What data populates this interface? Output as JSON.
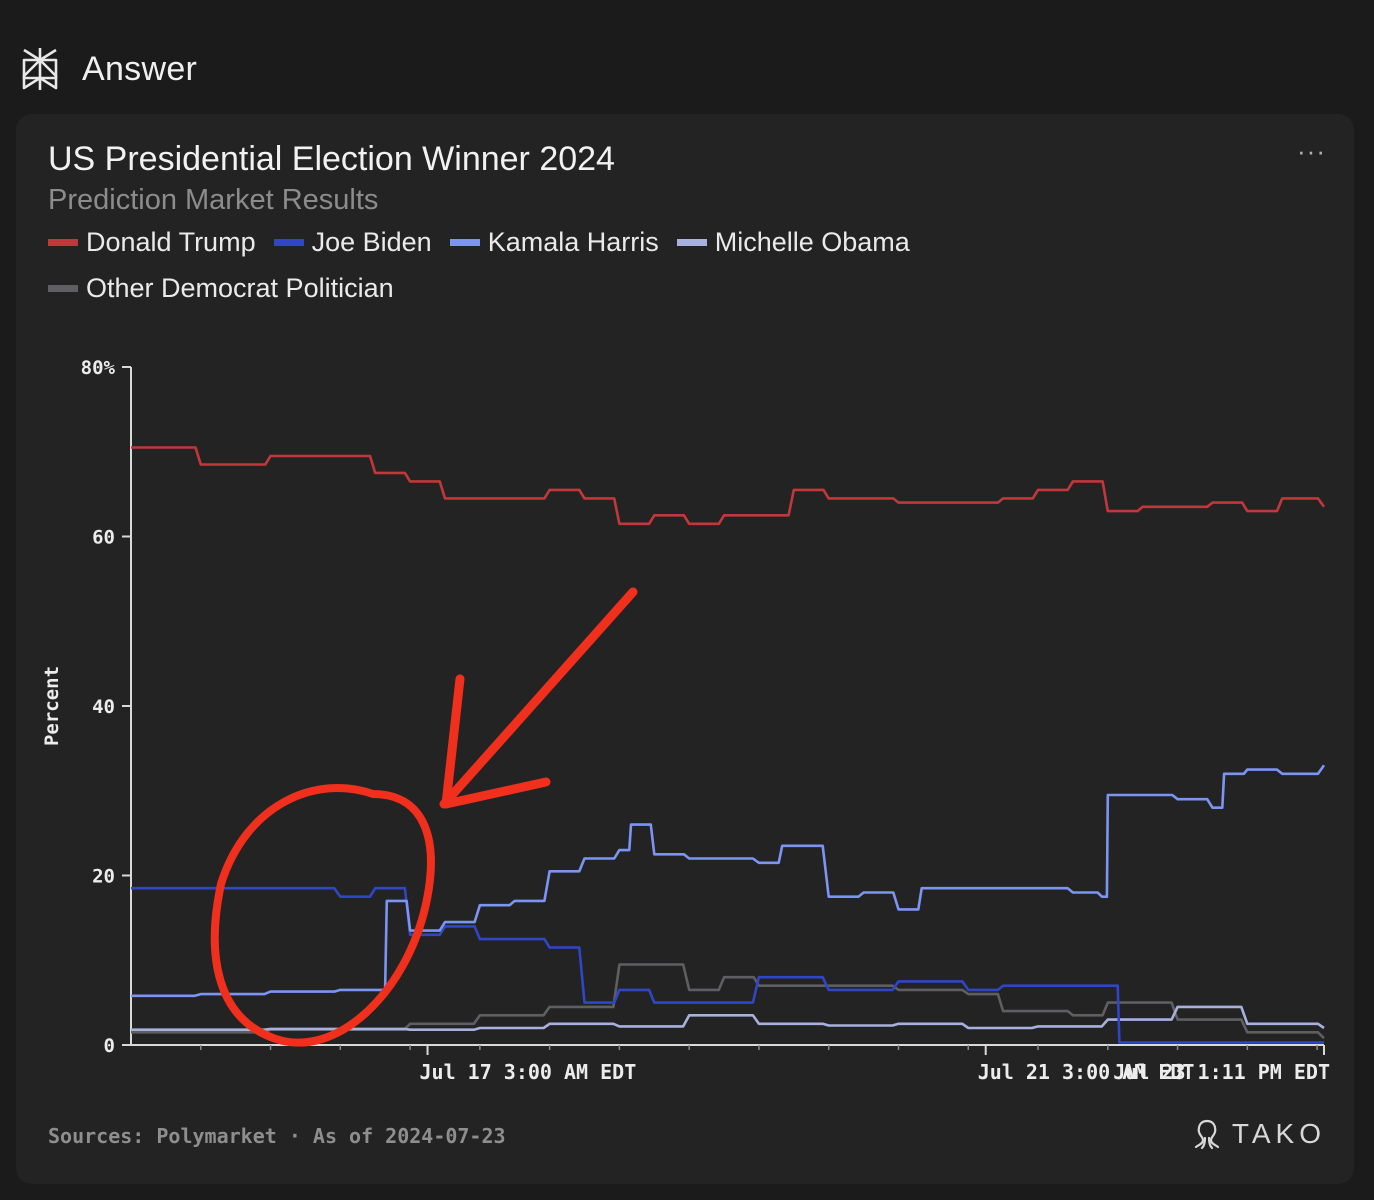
{
  "header": {
    "title": "Answer",
    "icon": "perplexity-logo-icon"
  },
  "card": {
    "menu_label": "···"
  },
  "chart_data": {
    "type": "line",
    "title": "US Presidential Election Winner 2024",
    "subtitle": "Prediction Market Results",
    "ylabel": "Percent",
    "ylim": [
      0,
      80
    ],
    "yticks": [
      {
        "value": 80,
        "label": "80%"
      },
      {
        "value": 60,
        "label": "60"
      },
      {
        "value": 40,
        "label": "40"
      },
      {
        "value": 20,
        "label": "20"
      },
      {
        "value": 0,
        "label": "0"
      }
    ],
    "xlim": [
      "2024-07-15 00:00",
      "2024-07-23 13:11"
    ],
    "xticks": [
      {
        "x": "2024-07-17 03:00",
        "label": "Jul 17 3:00 AM EDT"
      },
      {
        "x": "2024-07-21 03:00",
        "label": "Jul 21 3:00 AM EDT"
      },
      {
        "x": "2024-07-23 13:11",
        "label": "Jul 23 1:11 PM EDT"
      }
    ],
    "legend_position": "top-left",
    "grid": false,
    "series": [
      {
        "name": "Donald Trump",
        "color": "#c2383a",
        "x": [
          "2024-07-15 00:00",
          "2024-07-15 06:00",
          "2024-07-15 12:00",
          "2024-07-15 18:00",
          "2024-07-16 00:00",
          "2024-07-16 06:00",
          "2024-07-16 12:00",
          "2024-07-16 18:00",
          "2024-07-17 00:00",
          "2024-07-17 06:00",
          "2024-07-17 12:00",
          "2024-07-17 18:00",
          "2024-07-18 00:00",
          "2024-07-18 06:00",
          "2024-07-18 12:00",
          "2024-07-18 18:00",
          "2024-07-19 00:00",
          "2024-07-19 06:00",
          "2024-07-19 12:00",
          "2024-07-19 18:00",
          "2024-07-20 00:00",
          "2024-07-20 06:00",
          "2024-07-20 12:00",
          "2024-07-20 18:00",
          "2024-07-21 00:00",
          "2024-07-21 06:00",
          "2024-07-21 12:00",
          "2024-07-21 18:00",
          "2024-07-22 00:00",
          "2024-07-22 06:00",
          "2024-07-22 12:00",
          "2024-07-22 18:00",
          "2024-07-23 00:00",
          "2024-07-23 06:00",
          "2024-07-23 13:11"
        ],
        "y": [
          70.5,
          70.5,
          68.5,
          68.5,
          69.5,
          69.5,
          69.5,
          67.5,
          66.5,
          64.5,
          64.5,
          64.5,
          65.5,
          64.5,
          61.5,
          62.5,
          61.5,
          62.5,
          62.5,
          65.5,
          64.5,
          64.5,
          64.0,
          64.0,
          64.0,
          64.5,
          65.5,
          66.5,
          63.0,
          63.5,
          63.5,
          64.0,
          63.0,
          64.5,
          63.5
        ]
      },
      {
        "name": "Joe Biden",
        "color": "#2e46c7",
        "x": [
          "2024-07-15 00:00",
          "2024-07-15 12:00",
          "2024-07-16 00:00",
          "2024-07-16 12:00",
          "2024-07-16 18:00",
          "2024-07-17 00:00",
          "2024-07-17 06:00",
          "2024-07-17 12:00",
          "2024-07-17 18:00",
          "2024-07-18 00:00",
          "2024-07-18 06:00",
          "2024-07-18 12:00",
          "2024-07-18 18:00",
          "2024-07-19 00:00",
          "2024-07-19 12:00",
          "2024-07-20 00:00",
          "2024-07-20 12:00",
          "2024-07-21 00:00",
          "2024-07-21 06:00",
          "2024-07-21 12:00",
          "2024-07-21 18:00",
          "2024-07-22 00:00",
          "2024-07-22 02:00",
          "2024-07-22 12:00",
          "2024-07-23 00:00",
          "2024-07-23 13:11"
        ],
        "y": [
          18.5,
          18.5,
          18.5,
          17.5,
          18.5,
          13.0,
          14.0,
          12.5,
          12.5,
          11.5,
          5.0,
          6.5,
          5.0,
          5.0,
          8.0,
          6.5,
          7.5,
          6.5,
          7.0,
          7.0,
          7.0,
          7.0,
          0.3,
          0.3,
          0.3,
          0.3
        ]
      },
      {
        "name": "Kamala Harris",
        "color": "#7c95f4",
        "x": [
          "2024-07-15 00:00",
          "2024-07-15 12:00",
          "2024-07-16 00:00",
          "2024-07-16 12:00",
          "2024-07-16 18:00",
          "2024-07-16 20:00",
          "2024-07-17 00:00",
          "2024-07-17 06:00",
          "2024-07-17 12:00",
          "2024-07-17 18:00",
          "2024-07-18 00:00",
          "2024-07-18 06:00",
          "2024-07-18 12:00",
          "2024-07-18 14:00",
          "2024-07-18 18:00",
          "2024-07-19 00:00",
          "2024-07-19 12:00",
          "2024-07-19 16:00",
          "2024-07-20 00:00",
          "2024-07-20 06:00",
          "2024-07-20 12:00",
          "2024-07-20 16:00",
          "2024-07-21 00:00",
          "2024-07-21 06:00",
          "2024-07-21 12:00",
          "2024-07-21 18:00",
          "2024-07-21 23:00",
          "2024-07-22 00:00",
          "2024-07-22 06:00",
          "2024-07-22 12:00",
          "2024-07-22 18:00",
          "2024-07-22 20:00",
          "2024-07-23 00:00",
          "2024-07-23 06:00",
          "2024-07-23 13:11"
        ],
        "y": [
          5.8,
          6.0,
          6.3,
          6.5,
          6.5,
          17.0,
          13.5,
          14.5,
          16.5,
          17.0,
          20.5,
          22.0,
          23.0,
          26.0,
          22.5,
          22.0,
          21.5,
          23.5,
          17.5,
          18.0,
          16.0,
          18.5,
          18.5,
          18.5,
          18.5,
          18.0,
          17.5,
          29.5,
          29.5,
          29.0,
          28.0,
          32.0,
          32.5,
          32.0,
          33.0
        ]
      },
      {
        "name": "Michelle Obama",
        "color": "#a8b0de",
        "x": [
          "2024-07-15 00:00",
          "2024-07-16 00:00",
          "2024-07-17 00:00",
          "2024-07-17 12:00",
          "2024-07-18 00:00",
          "2024-07-18 12:00",
          "2024-07-19 00:00",
          "2024-07-19 12:00",
          "2024-07-20 00:00",
          "2024-07-20 12:00",
          "2024-07-21 00:00",
          "2024-07-21 12:00",
          "2024-07-22 00:00",
          "2024-07-22 12:00",
          "2024-07-23 00:00",
          "2024-07-23 13:11"
        ],
        "y": [
          1.8,
          1.9,
          1.8,
          2.0,
          2.5,
          2.2,
          3.5,
          2.5,
          2.3,
          2.5,
          2.0,
          2.2,
          3.0,
          4.5,
          2.5,
          2.0
        ]
      },
      {
        "name": "Other Democrat Politician",
        "color": "#5f5f62",
        "x": [
          "2024-07-15 00:00",
          "2024-07-16 00:00",
          "2024-07-17 00:00",
          "2024-07-17 12:00",
          "2024-07-18 00:00",
          "2024-07-18 12:00",
          "2024-07-19 00:00",
          "2024-07-19 06:00",
          "2024-07-19 12:00",
          "2024-07-20 00:00",
          "2024-07-20 12:00",
          "2024-07-21 00:00",
          "2024-07-21 06:00",
          "2024-07-21 12:00",
          "2024-07-21 18:00",
          "2024-07-22 00:00",
          "2024-07-22 12:00",
          "2024-07-23 00:00",
          "2024-07-23 13:11"
        ],
        "y": [
          1.5,
          1.8,
          2.5,
          3.5,
          4.5,
          9.5,
          6.5,
          8.0,
          7.0,
          7.0,
          6.5,
          6.0,
          4.0,
          4.0,
          3.5,
          5.0,
          3.0,
          1.5,
          0.8
        ]
      }
    ]
  },
  "footer": {
    "sources": "Sources: Polymarket · As of 2024-07-23",
    "brand": "TAKO",
    "brand_icon": "tako-octopus-icon"
  }
}
